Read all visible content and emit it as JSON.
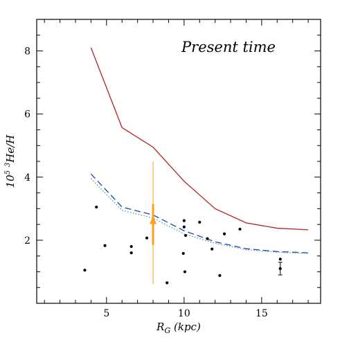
{
  "chart_data": {
    "type": "line",
    "title": "Present time",
    "xlabel": "R_G (kpc)",
    "ylabel": "10^5 3He/H",
    "xlim": [
      0.5,
      18.8
    ],
    "ylim": [
      0,
      9
    ],
    "xticks": [
      5,
      10,
      15
    ],
    "yticks": [
      2,
      4,
      6,
      8
    ],
    "grid": false,
    "series": [
      {
        "style": "solid",
        "color": "#b22222",
        "x": [
          4,
          6,
          8,
          10,
          12,
          14,
          16,
          18
        ],
        "y": [
          8.1,
          5.57,
          4.95,
          3.87,
          3.0,
          2.55,
          2.38,
          2.33
        ]
      },
      {
        "style": "dashed",
        "color": "#1f3fbf",
        "x": [
          4,
          6,
          8,
          10,
          12,
          14,
          16,
          18
        ],
        "y": [
          4.1,
          3.05,
          2.8,
          2.3,
          1.95,
          1.73,
          1.64,
          1.6
        ]
      },
      {
        "style": "dotted",
        "color": "#3aaa78",
        "x": [
          4,
          6,
          8,
          10,
          12,
          14,
          16,
          18
        ],
        "y": [
          3.95,
          2.95,
          2.7,
          2.2,
          1.9,
          1.7,
          1.62,
          1.58
        ]
      }
    ],
    "solar_marker": {
      "x": 8.0,
      "y": 2.6,
      "y_bar_inner": [
        1.85,
        3.15
      ],
      "y_bar_outer": [
        0.6,
        4.5
      ],
      "color": "#ffa020"
    },
    "points": [
      {
        "x": 3.6,
        "y": 1.05
      },
      {
        "x": 4.35,
        "y": 3.05
      },
      {
        "x": 4.9,
        "y": 1.83
      },
      {
        "x": 6.6,
        "y": 1.8
      },
      {
        "x": 6.6,
        "y": 1.6
      },
      {
        "x": 7.6,
        "y": 2.07
      },
      {
        "x": 8.9,
        "y": 0.65
      },
      {
        "x": 9.95,
        "y": 1.58
      },
      {
        "x": 10.0,
        "y": 2.62
      },
      {
        "x": 10.0,
        "y": 2.42
      },
      {
        "x": 10.1,
        "y": 2.15
      },
      {
        "x": 10.05,
        "y": 1.0
      },
      {
        "x": 11.0,
        "y": 2.57
      },
      {
        "x": 11.5,
        "y": 2.05
      },
      {
        "x": 11.8,
        "y": 1.72
      },
      {
        "x": 12.3,
        "y": 0.88
      },
      {
        "x": 12.6,
        "y": 2.2
      },
      {
        "x": 13.6,
        "y": 2.35
      },
      {
        "x": 16.2,
        "y": 1.4
      }
    ],
    "error_point": {
      "x": 16.2,
      "y": 1.1,
      "ylo": 0.9,
      "yhi": 1.3
    }
  }
}
